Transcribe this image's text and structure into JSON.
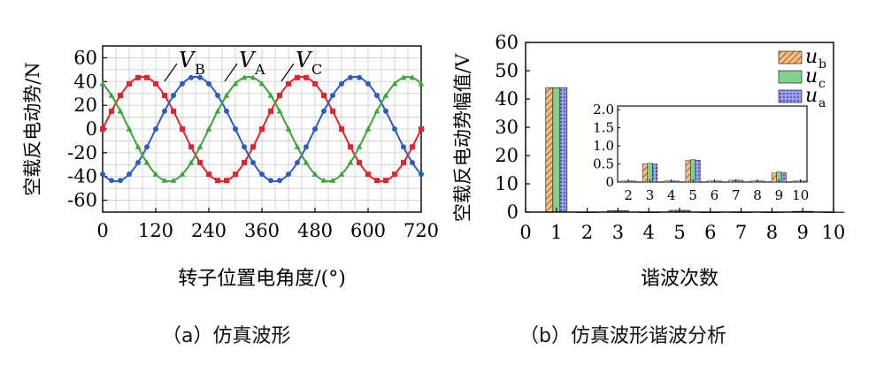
{
  "chart_data": [
    {
      "type": "line",
      "caption": "（a）仿真波形",
      "xlabel": "转子位置电角度/(°)",
      "ylabel": "空载反电动势/N",
      "xlim": [
        0,
        720
      ],
      "ylim": [
        -70,
        70
      ],
      "xticks": [
        "0",
        "120",
        "240",
        "360",
        "480",
        "600",
        "720"
      ],
      "yticks": [
        "60",
        "40",
        "20",
        "0",
        "-20",
        "-40",
        "-60"
      ],
      "grid": true,
      "series": [
        {
          "name": "A",
          "label": "V",
          "color": "#e8212b",
          "marker": "square",
          "amplitude": 44,
          "phase": 0,
          "period": 360
        },
        {
          "name": "B",
          "label": "V",
          "color": "#2a5cc8",
          "marker": "circle",
          "amplitude": 44,
          "phase": -120,
          "period": 360
        },
        {
          "name": "C",
          "label": "V",
          "color": "#3aa63a",
          "marker": "triangle",
          "amplitude": 44,
          "phase": 120,
          "period": 360
        }
      ]
    },
    {
      "type": "bar",
      "caption": "（b）仿真波形谐波分析",
      "xlabel": "谐波次数",
      "ylabel": "空载反电动势幅值/V",
      "xlim": [
        0,
        10
      ],
      "ylim": [
        0,
        60
      ],
      "xticks": [
        "0",
        "1",
        "2",
        "3",
        "4",
        "5",
        "6",
        "7",
        "8",
        "9",
        "10"
      ],
      "yticks": [
        "60",
        "50",
        "40",
        "30",
        "20",
        "10",
        "0"
      ],
      "categories": [
        1,
        2,
        3,
        4,
        5,
        6,
        7,
        8,
        9,
        10
      ],
      "series": [
        {
          "name": "b",
          "label": "u",
          "color": "#e8873a",
          "pattern": "hatch",
          "values": [
            44,
            0.03,
            0.5,
            0.03,
            0.6,
            0.03,
            0.05,
            0.03,
            0.25,
            0.03
          ]
        },
        {
          "name": "c",
          "label": "u",
          "color": "#7fd28f",
          "pattern": "solid",
          "values": [
            44,
            0.03,
            0.52,
            0.03,
            0.62,
            0.03,
            0.05,
            0.03,
            0.28,
            0.03
          ]
        },
        {
          "name": "a",
          "label": "u",
          "color": "#6a6ad8",
          "pattern": "dots",
          "values": [
            44,
            0.03,
            0.5,
            0.03,
            0.6,
            0.03,
            0.05,
            0.03,
            0.26,
            0.03
          ]
        }
      ],
      "inset": {
        "xticks": [
          "2",
          "3",
          "4",
          "5",
          "6",
          "7",
          "8",
          "9",
          "10"
        ],
        "yticks": [
          "2.0",
          "1.5",
          "1.0",
          "0.5",
          "0"
        ],
        "xlim": [
          1.5,
          10.3
        ],
        "ylim": [
          0,
          2.1
        ]
      }
    }
  ]
}
